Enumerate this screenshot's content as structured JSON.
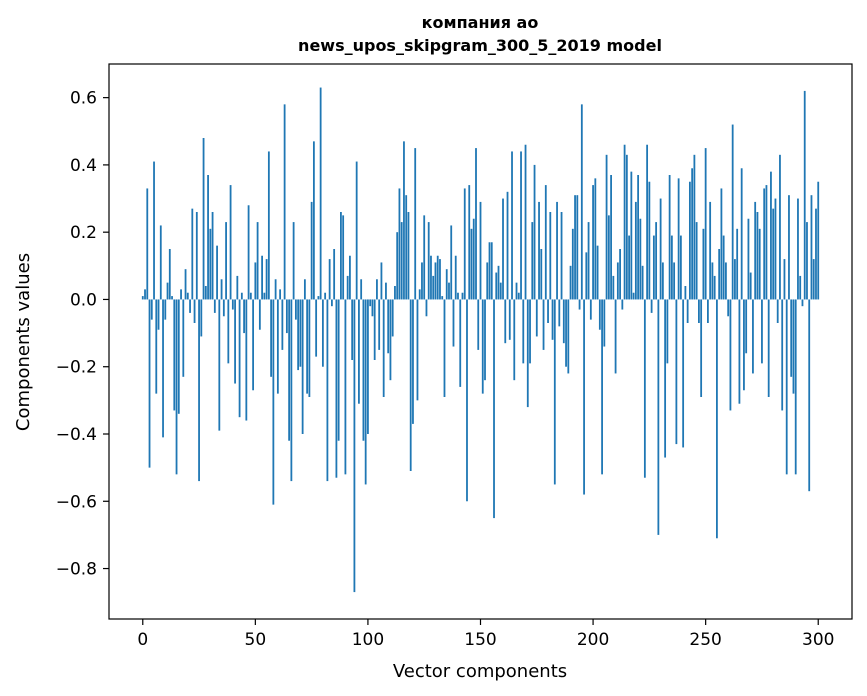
{
  "chart_data": {
    "type": "bar",
    "title_line1": "компания ао",
    "title_line2": "news_upos_skipgram_300_5_2019 model",
    "xlabel": "Vector components",
    "ylabel": "Components values",
    "xlim": [
      -15,
      315
    ],
    "ylim": [
      -0.95,
      0.7
    ],
    "xticks": [
      0,
      50,
      100,
      150,
      200,
      250,
      300
    ],
    "xtick_labels": [
      "0",
      "50",
      "100",
      "150",
      "200",
      "250",
      "300"
    ],
    "yticks": [
      0.6,
      0.4,
      0.2,
      0.0,
      -0.2,
      -0.4,
      -0.6,
      -0.8
    ],
    "ytick_labels": [
      "0.6",
      "0.4",
      "0.2",
      "0.0",
      "−0.2",
      "−0.4",
      "−0.6",
      "−0.8"
    ],
    "bar_color": "#1f77b4",
    "grid": false,
    "values": [
      0.01,
      0.03,
      0.33,
      -0.5,
      -0.06,
      0.41,
      -0.28,
      -0.09,
      0.22,
      -0.41,
      -0.06,
      0.05,
      0.15,
      0.01,
      -0.33,
      -0.52,
      -0.34,
      0.03,
      -0.23,
      0.09,
      0.02,
      -0.04,
      0.27,
      -0.07,
      0.26,
      -0.54,
      -0.11,
      0.48,
      0.04,
      0.37,
      0.21,
      0.26,
      -0.04,
      0.16,
      -0.39,
      0.06,
      -0.05,
      0.23,
      -0.19,
      0.34,
      -0.03,
      -0.25,
      0.07,
      -0.35,
      0.02,
      -0.1,
      -0.36,
      0.28,
      0.02,
      -0.27,
      0.11,
      0.23,
      -0.09,
      0.13,
      0.02,
      0.12,
      0.44,
      -0.23,
      -0.61,
      0.06,
      -0.28,
      0.03,
      -0.15,
      0.58,
      -0.1,
      -0.42,
      -0.54,
      0.23,
      -0.06,
      -0.21,
      -0.2,
      -0.4,
      0.06,
      -0.28,
      -0.29,
      0.29,
      0.47,
      -0.17,
      0.01,
      0.63,
      -0.2,
      0.02,
      -0.54,
      0.12,
      -0.02,
      0.15,
      -0.53,
      -0.42,
      0.26,
      0.25,
      -0.52,
      0.07,
      0.13,
      -0.18,
      -0.87,
      0.41,
      -0.31,
      0.06,
      -0.42,
      -0.55,
      -0.4,
      -0.02,
      -0.05,
      -0.18,
      0.06,
      -0.15,
      0.11,
      -0.29,
      0.05,
      -0.16,
      -0.24,
      -0.11,
      0.04,
      0.2,
      0.33,
      0.23,
      0.47,
      0.31,
      0.26,
      -0.51,
      -0.37,
      0.45,
      -0.3,
      0.03,
      0.11,
      0.25,
      -0.05,
      0.23,
      0.13,
      0.07,
      0.11,
      0.13,
      0.12,
      0.01,
      -0.29,
      0.09,
      0.05,
      0.22,
      -0.14,
      0.13,
      0.02,
      -0.26,
      0.02,
      0.33,
      -0.6,
      0.34,
      0.21,
      0.24,
      0.45,
      -0.15,
      0.29,
      -0.28,
      -0.24,
      0.11,
      0.17,
      0.17,
      -0.65,
      0.08,
      0.1,
      0.05,
      0.3,
      -0.13,
      0.32,
      -0.12,
      0.44,
      -0.24,
      0.05,
      0.02,
      0.44,
      -0.19,
      0.46,
      -0.32,
      -0.19,
      0.23,
      0.4,
      -0.11,
      0.29,
      0.15,
      -0.15,
      0.34,
      -0.07,
      0.26,
      -0.12,
      -0.55,
      0.29,
      -0.08,
      0.26,
      -0.13,
      -0.2,
      -0.22,
      0.1,
      0.21,
      0.31,
      0.31,
      -0.03,
      0.58,
      -0.58,
      0.14,
      0.23,
      -0.06,
      0.34,
      0.36,
      0.16,
      -0.09,
      -0.52,
      -0.14,
      0.43,
      0.25,
      0.37,
      0.07,
      -0.22,
      0.11,
      0.15,
      -0.03,
      0.46,
      0.43,
      0.19,
      0.38,
      0.02,
      0.29,
      0.37,
      0.24,
      0.1,
      -0.53,
      0.46,
      0.35,
      -0.04,
      0.19,
      0.23,
      -0.7,
      0.3,
      0.11,
      -0.47,
      -0.19,
      0.37,
      0.19,
      0.11,
      -0.43,
      0.36,
      0.19,
      -0.44,
      0.04,
      -0.07,
      0.35,
      0.39,
      0.43,
      0.23,
      -0.07,
      -0.29,
      0.21,
      0.45,
      -0.07,
      0.29,
      0.11,
      0.07,
      -0.71,
      0.15,
      0.33,
      0.19,
      0.11,
      -0.05,
      -0.33,
      0.52,
      0.12,
      0.21,
      -0.31,
      0.39,
      -0.27,
      -0.16,
      0.24,
      0.08,
      -0.22,
      0.29,
      0.26,
      0.21,
      -0.19,
      0.33,
      0.34,
      -0.29,
      0.38,
      0.27,
      0.3,
      -0.07,
      0.43,
      -0.33,
      0.12,
      -0.52,
      0.31,
      -0.23,
      -0.28,
      -0.52,
      0.3,
      0.07,
      -0.02,
      0.62,
      0.23,
      -0.57,
      0.31,
      0.12,
      0.27,
      0.35
    ]
  }
}
